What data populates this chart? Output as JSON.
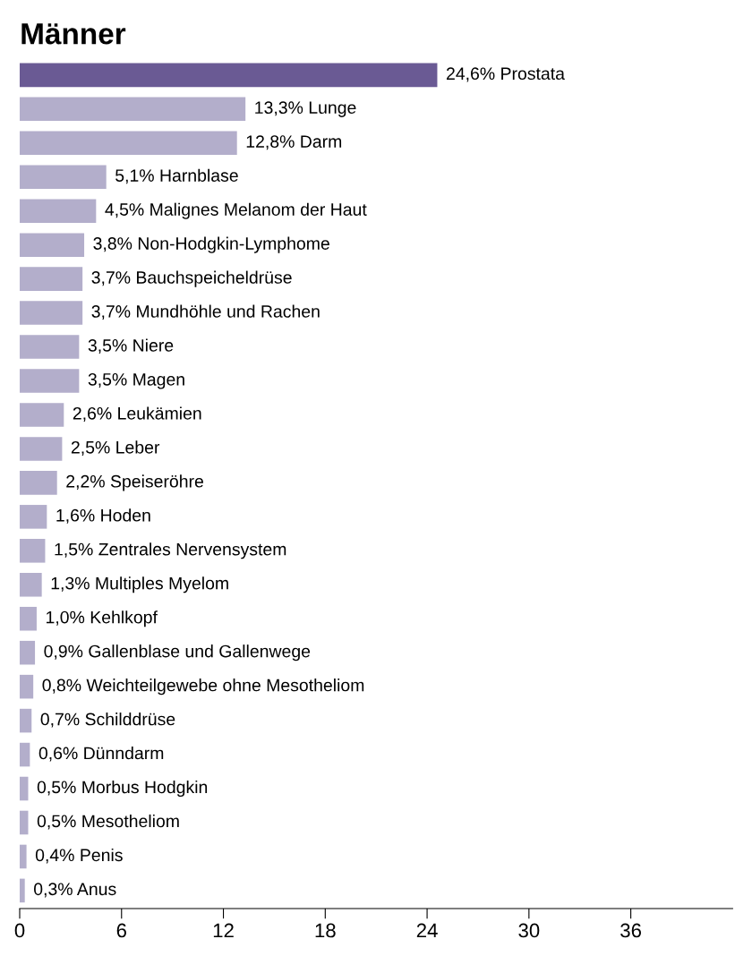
{
  "chart_data": {
    "type": "bar",
    "title": "Männer",
    "orientation": "horizontal",
    "categories": [
      "Prostata",
      "Lunge",
      "Darm",
      "Harnblase",
      "Malignes Melanom der Haut",
      "Non-Hodgkin-Lymphome",
      "Bauchspeicheldrüse",
      "Mundhöhle und Rachen",
      "Niere",
      "Magen",
      "Leukämien",
      "Leber",
      "Speiseröhre",
      "Hoden",
      "Zentrales Nervensystem",
      "Multiples Myelom",
      "Kehlkopf",
      "Gallenblase und Gallenwege",
      "Weichteilgewebe ohne Mesotheliom",
      "Schilddrüse",
      "Dünndarm",
      "Morbus Hodgkin",
      "Mesotheliom",
      "Penis",
      "Anus"
    ],
    "values": [
      24.6,
      13.3,
      12.8,
      5.1,
      4.5,
      3.8,
      3.7,
      3.7,
      3.5,
      3.5,
      2.6,
      2.5,
      2.2,
      1.6,
      1.5,
      1.3,
      1.0,
      0.9,
      0.8,
      0.7,
      0.6,
      0.5,
      0.5,
      0.4,
      0.3
    ],
    "value_labels": [
      "24,6%",
      "13,3%",
      "12,8%",
      "5,1%",
      "4,5%",
      "3,8%",
      "3,7%",
      "3,7%",
      "3,5%",
      "3,5%",
      "2,6%",
      "2,5%",
      "2,2%",
      "1,6%",
      "1,5%",
      "1,3%",
      "1,0%",
      "0,9%",
      "0,8%",
      "0,7%",
      "0,6%",
      "0,5%",
      "0,5%",
      "0,4%",
      "0,3%"
    ],
    "colors": [
      "#6a5a94",
      "#b3aecb",
      "#b3aecb",
      "#b3aecb",
      "#b3aecb",
      "#b3aecb",
      "#b3aecb",
      "#b3aecb",
      "#b3aecb",
      "#b3aecb",
      "#b3aecb",
      "#b3aecb",
      "#b3aecb",
      "#b3aecb",
      "#b3aecb",
      "#b3aecb",
      "#b3aecb",
      "#b3aecb",
      "#b3aecb",
      "#b3aecb",
      "#b3aecb",
      "#b3aecb",
      "#b3aecb",
      "#b3aecb",
      "#b3aecb"
    ],
    "xlim": [
      0,
      42
    ],
    "xticks": [
      0,
      6,
      12,
      18,
      24,
      30,
      36
    ],
    "tick_labels": "x",
    "grid": false,
    "legend": false
  }
}
